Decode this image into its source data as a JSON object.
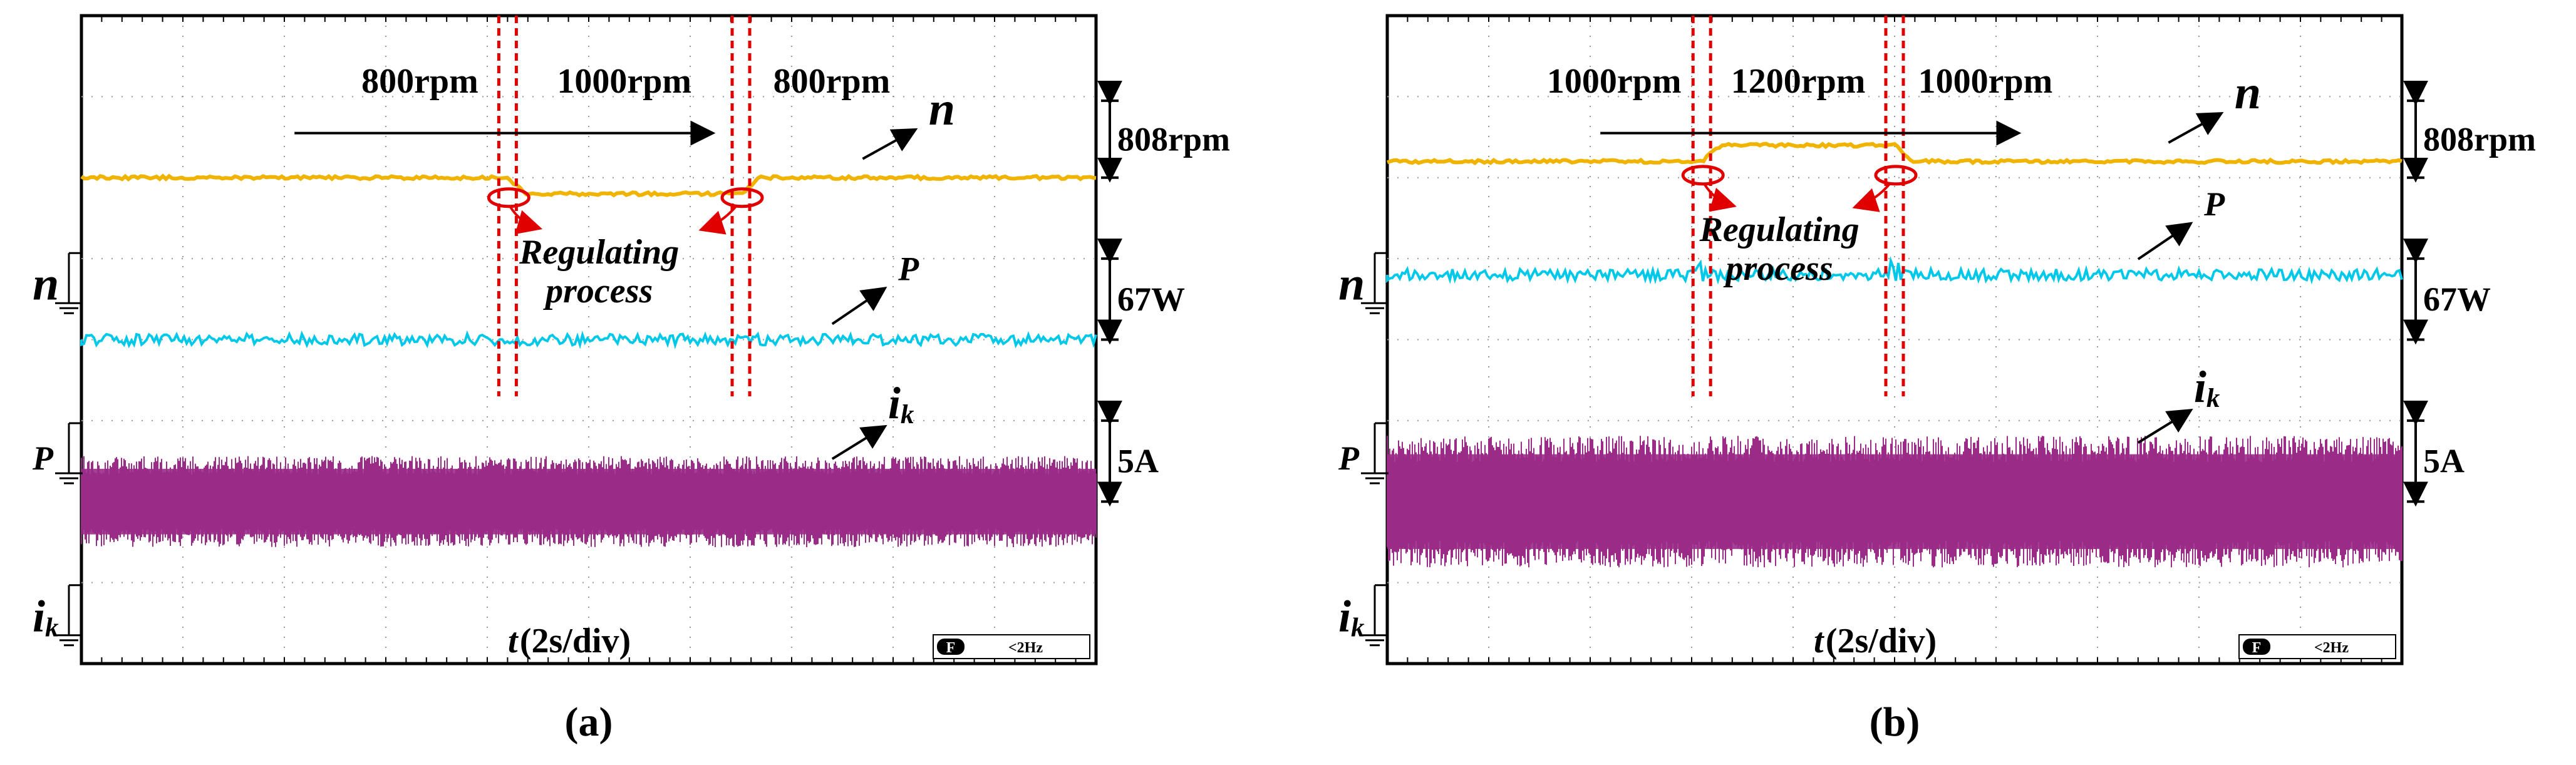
{
  "chart_data": [
    {
      "type": "line",
      "panel": "(a)",
      "xlabel_var": "t",
      "xlabel_unit": "(2s/div)",
      "x_divisions": 10,
      "y_divisions": 8,
      "speed_segments": [
        {
          "label": "800rpm",
          "from_div": 0.0,
          "to_div": 4.2
        },
        {
          "label": "1000rpm",
          "from_div": 4.2,
          "to_div": 6.5
        },
        {
          "label": "800rpm",
          "from_div": 6.5,
          "to_div": 10.0
        }
      ],
      "series": [
        {
          "name": "n",
          "color": "#f0b400",
          "ground_label": "n",
          "scale": "808rpm",
          "level_div": 2.0,
          "steps": [
            {
              "at": 4.2,
              "level": 2.2
            },
            {
              "at": 6.5,
              "level": 2.0
            }
          ]
        },
        {
          "name": "P",
          "color": "#00c8e8",
          "ground_label": "P",
          "scale": "67W",
          "level_div": 4.0
        },
        {
          "name": "i",
          "sub": "k",
          "color": "#9a2c88",
          "ground_label": "i",
          "ground_sub": "k",
          "scale": "5A",
          "center_div": 6.0,
          "amplitude_div": 0.45
        }
      ],
      "annotation": {
        "line1": "Regulating",
        "line2": "process"
      },
      "status_badge": "F",
      "status_text": "<2Hz",
      "caption": "(a)"
    },
    {
      "type": "line",
      "panel": "(b)",
      "xlabel_var": "t",
      "xlabel_unit": "(2s/div)",
      "x_divisions": 10,
      "y_divisions": 8,
      "speed_segments": [
        {
          "label": "1000rpm",
          "from_div": 0.0,
          "to_div": 3.1
        },
        {
          "label": "1200rpm",
          "from_div": 3.1,
          "to_div": 5.0
        },
        {
          "label": "1000rpm",
          "from_div": 5.0,
          "to_div": 10.0
        }
      ],
      "series": [
        {
          "name": "n",
          "color": "#f0b400",
          "ground_label": "n",
          "scale": "808rpm",
          "level_div": 1.8,
          "steps": [
            {
              "at": 3.1,
              "level": 1.6
            },
            {
              "at": 5.0,
              "level": 1.8
            }
          ]
        },
        {
          "name": "P",
          "color": "#00c8e8",
          "ground_label": "P",
          "scale": "67W",
          "level_div": 3.2
        },
        {
          "name": "i",
          "sub": "k",
          "color": "#9a2c88",
          "ground_label": "i",
          "ground_sub": "k",
          "scale": "5A",
          "center_div": 6.0,
          "amplitude_div": 0.65
        }
      ],
      "annotation": {
        "line1": "Regulating",
        "line2": "process"
      },
      "status_badge": "F",
      "status_text": "<2Hz",
      "caption": "(b)"
    }
  ]
}
